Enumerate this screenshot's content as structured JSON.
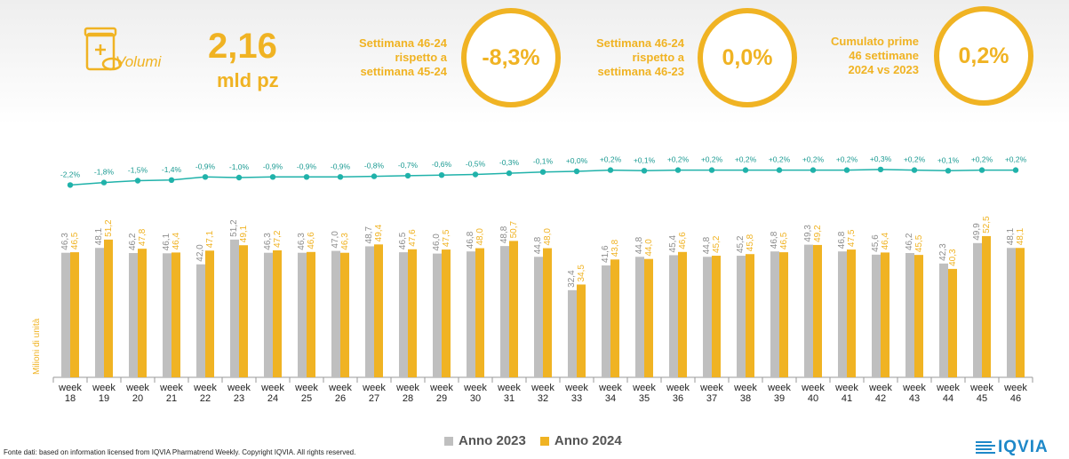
{
  "header": {
    "volumes_label": "Volumi",
    "volumes_value": "2,16",
    "volumes_unit": "mld pz",
    "icon": "pill-box-icon",
    "kpis": [
      {
        "lines": [
          "Settimana 46-24",
          "rispetto a",
          "settimana 45-24"
        ],
        "value": "-8,3%"
      },
      {
        "lines": [
          "Settimana 46-24",
          "rispetto a",
          "settimana 46-23"
        ],
        "value": "0,0%"
      },
      {
        "lines": [
          "Cumulato prime",
          "46 settimane",
          "2024 vs 2023"
        ],
        "value": "0,2%"
      }
    ]
  },
  "chart_data": {
    "type": "bar",
    "ylabel": "Milioni di unità",
    "categories": [
      "week 18",
      "week 19",
      "week 20",
      "week 21",
      "week 22",
      "week 23",
      "week 24",
      "week 25",
      "week 26",
      "week 27",
      "week 28",
      "week 29",
      "week 30",
      "week 31",
      "week 32",
      "week 33",
      "week 34",
      "week 35",
      "week 36",
      "week 37",
      "week 38",
      "week 39",
      "week 40",
      "week 41",
      "week 42",
      "week 43",
      "week 44",
      "week 45",
      "week 46"
    ],
    "series": [
      {
        "name": "Anno 2023",
        "color": "#bfbfbf",
        "values": [
          46.3,
          48.1,
          46.2,
          46.1,
          42.0,
          51.2,
          46.3,
          46.3,
          47.0,
          48.7,
          46.5,
          46.0,
          46.8,
          48.8,
          44.8,
          32.4,
          41.6,
          44.8,
          45.4,
          44.8,
          45.2,
          46.8,
          49.3,
          46.8,
          45.6,
          46.2,
          42.3,
          49.9,
          48.1
        ],
        "labels": [
          "46,3",
          "48,1",
          "46,2",
          "46,1",
          "42,0",
          "51,2",
          "46,3",
          "46,3",
          "47,0",
          "48,7",
          "46,5",
          "46,0",
          "46,8",
          "48,8",
          "44,8",
          "32,4",
          "41,6",
          "44,8",
          "45,4",
          "44,8",
          "45,2",
          "46,8",
          "49,3",
          "46,8",
          "45,6",
          "46,2",
          "42,3",
          "49,9",
          "48,1"
        ]
      },
      {
        "name": "Anno 2024",
        "color": "#f0b323",
        "values": [
          46.5,
          51.2,
          47.8,
          46.4,
          47.1,
          49.1,
          47.2,
          46.6,
          46.3,
          49.4,
          47.6,
          47.5,
          48.0,
          50.7,
          48.0,
          34.5,
          43.8,
          44.0,
          46.6,
          45.2,
          45.8,
          46.5,
          49.2,
          47.5,
          46.4,
          45.5,
          40.3,
          52.5,
          48.1
        ],
        "labels": [
          "46,5",
          "51,2",
          "47,8",
          "46,4",
          "47,1",
          "49,1",
          "47,2",
          "46,6",
          "46,3",
          "49,4",
          "47,6",
          "47,5",
          "48,0",
          "50,7",
          "48,0",
          "34,5",
          "43,8",
          "44,0",
          "46,6",
          "45,2",
          "45,8",
          "46,5",
          "49,2",
          "47,5",
          "46,4",
          "45,5",
          "40,3",
          "52,5",
          "48,1"
        ]
      }
    ],
    "cumulative_line": {
      "color": "#20b2aa",
      "values": [
        -2.2,
        -1.8,
        -1.5,
        -1.4,
        -0.9,
        -1.0,
        -0.9,
        -0.9,
        -0.9,
        -0.8,
        -0.7,
        -0.6,
        -0.5,
        -0.3,
        -0.1,
        0.0,
        0.2,
        0.1,
        0.2,
        0.2,
        0.2,
        0.2,
        0.2,
        0.2,
        0.3,
        0.2,
        0.1,
        0.2,
        0.2
      ],
      "labels": [
        "-2,2%",
        "-1,8%",
        "-1,5%",
        "-1,4%",
        "-0,9%",
        "-1,0%",
        "-0,9%",
        "-0,9%",
        "-0,9%",
        "-0,8%",
        "-0,7%",
        "-0,6%",
        "-0,5%",
        "-0,3%",
        "-0,1%",
        "+0,0%",
        "+0,2%",
        "+0,1%",
        "+0,2%",
        "+0,2%",
        "+0,2%",
        "+0,2%",
        "+0,2%",
        "+0,2%",
        "+0,3%",
        "+0,2%",
        "+0,1%",
        "+0,2%",
        "+0,2%"
      ]
    },
    "legend_position": "bottom"
  },
  "footer": {
    "source": "Fonte dati: based on information licensed from IQVIA Pharmatrend Weekly. Copyright IQVIA. All rights reserved.",
    "logo": "IQVIA"
  }
}
